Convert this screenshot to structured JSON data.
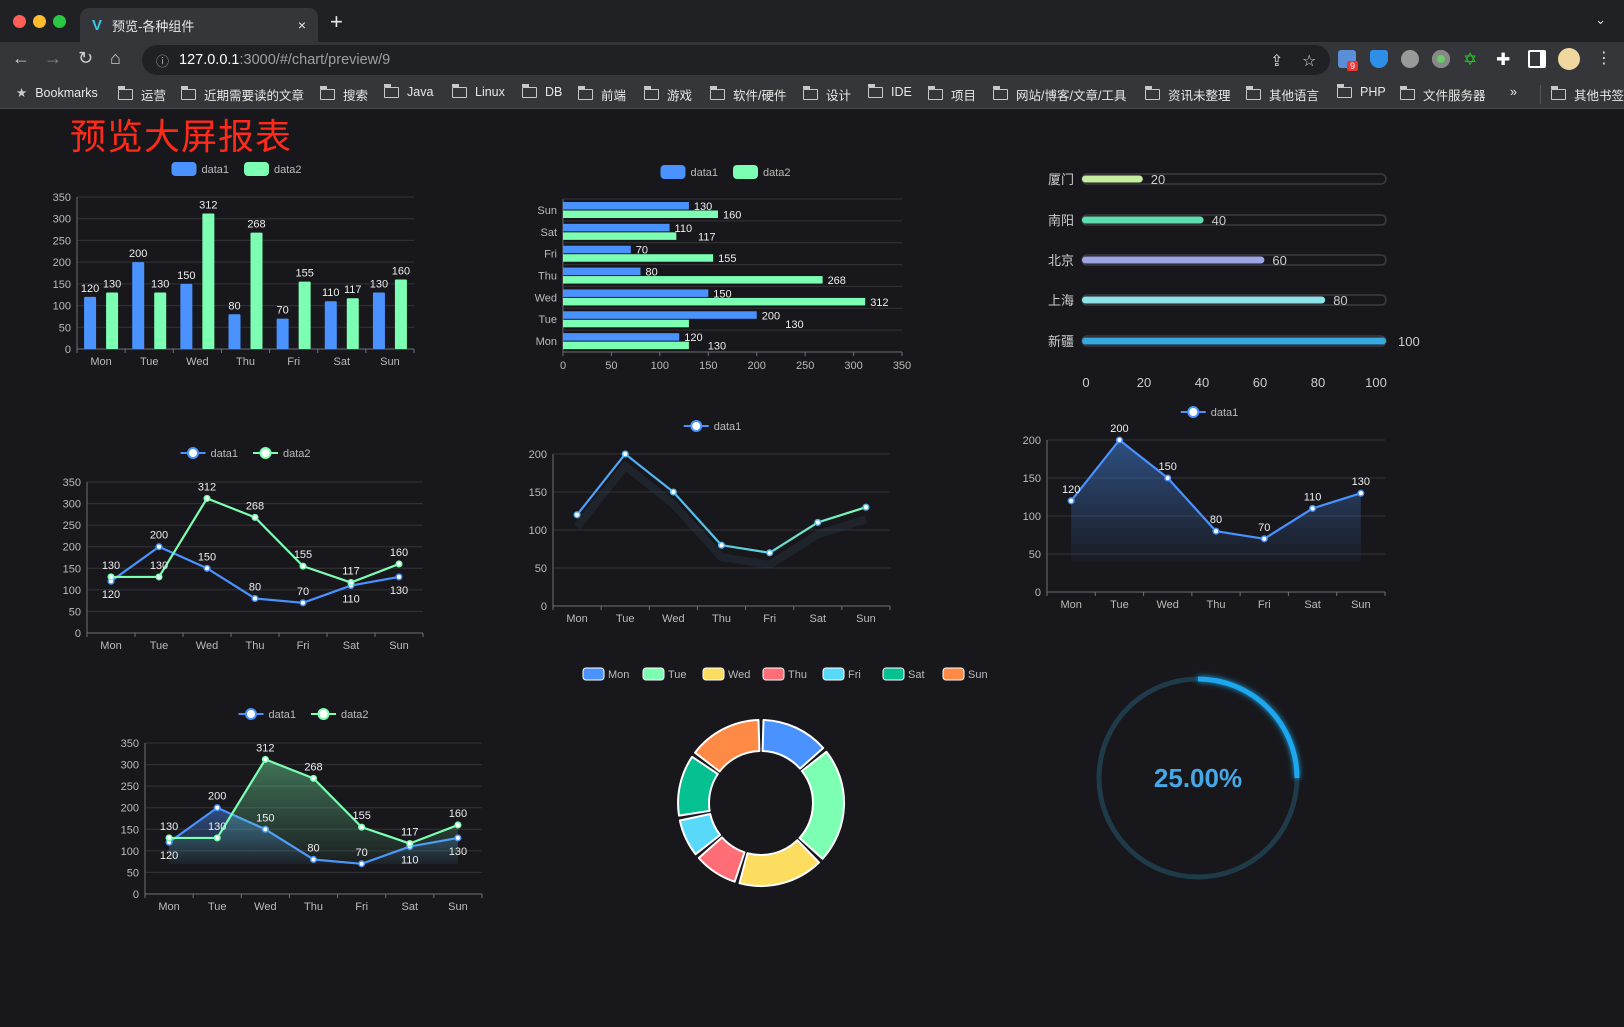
{
  "browser": {
    "tab_title": "预览-各种组件",
    "tab_close": "×",
    "new_tab": "+",
    "url_host": "127.0.0.1",
    "url_path": ":3000/#/chart/preview/9",
    "extension_badge": "9",
    "bookmarks": [
      "Bookmarks",
      "运营",
      "近期需要读的文章",
      "搜索",
      "Java",
      "Linux",
      "DB",
      "前端",
      "游戏",
      "软件/硬件",
      "设计",
      "IDE",
      "项目",
      "网站/博客/文章/工具",
      "资讯未整理",
      "其他语言",
      "PHP",
      "文件服务器"
    ],
    "bookmarks_overflow": "»",
    "other_bookmarks": "其他书签"
  },
  "page": {
    "title": "预览大屏报表",
    "title_color": "#ff2a1a"
  },
  "colors": {
    "data1": "#4992ff",
    "data2": "#7cffb2"
  },
  "chart_data": [
    {
      "type": "bar",
      "legend": [
        "data1",
        "data2"
      ],
      "legend_position": "top",
      "categories": [
        "Mon",
        "Tue",
        "Wed",
        "Thu",
        "Fri",
        "Sat",
        "Sun"
      ],
      "series": [
        {
          "name": "data1",
          "values": [
            120,
            200,
            150,
            80,
            70,
            110,
            130
          ]
        },
        {
          "name": "data2",
          "values": [
            130,
            130,
            312,
            268,
            155,
            117,
            160
          ]
        }
      ],
      "yticks": [
        0,
        50,
        100,
        150,
        200,
        250,
        300,
        350
      ],
      "ylim": [
        0,
        350
      ],
      "grid": true,
      "data_labels": true
    },
    {
      "type": "bar",
      "orientation": "horizontal",
      "legend": [
        "data1",
        "data2"
      ],
      "legend_position": "top",
      "categories": [
        "Mon",
        "Tue",
        "Wed",
        "Thu",
        "Fri",
        "Sat",
        "Sun"
      ],
      "series": [
        {
          "name": "data1",
          "values": [
            120,
            200,
            150,
            80,
            70,
            110,
            130
          ]
        },
        {
          "name": "data2",
          "values": [
            130,
            130,
            312,
            268,
            155,
            117,
            160
          ]
        }
      ],
      "xticks": [
        0,
        50,
        100,
        150,
        200,
        250,
        300,
        350
      ],
      "xlim": [
        0,
        350
      ],
      "grid": true,
      "data_labels": true
    },
    {
      "type": "bar",
      "orientation": "horizontal",
      "style": "progress",
      "categories": [
        "厦门",
        "南阳",
        "北京",
        "上海",
        "新疆"
      ],
      "values": [
        20,
        40,
        60,
        80,
        100
      ],
      "labels": [
        "20",
        "40",
        "60",
        "80",
        "100"
      ],
      "colors": [
        "#c6eea0",
        "#5fdfb0",
        "#9fa4e6",
        "#8ee2ea",
        "#36a9e1"
      ],
      "xticks": [
        0,
        20,
        40,
        60,
        80,
        100
      ],
      "xlim": [
        0,
        100
      ]
    },
    {
      "type": "line",
      "legend": [
        "data1",
        "data2"
      ],
      "legend_position": "top",
      "categories": [
        "Mon",
        "Tue",
        "Wed",
        "Thu",
        "Fri",
        "Sat",
        "Sun"
      ],
      "series": [
        {
          "name": "data1",
          "values": [
            120,
            200,
            150,
            80,
            70,
            110,
            130
          ]
        },
        {
          "name": "data2",
          "values": [
            130,
            130,
            312,
            268,
            155,
            117,
            160
          ]
        }
      ],
      "yticks": [
        0,
        50,
        100,
        150,
        200,
        250,
        300,
        350
      ],
      "ylim": [
        0,
        350
      ],
      "grid": true,
      "data_labels": true
    },
    {
      "type": "line",
      "legend": [
        "data1"
      ],
      "legend_position": "top",
      "categories": [
        "Mon",
        "Tue",
        "Wed",
        "Thu",
        "Fri",
        "Sat",
        "Sun"
      ],
      "series": [
        {
          "name": "data1",
          "values": [
            120,
            200,
            150,
            80,
            70,
            110,
            130
          ]
        }
      ],
      "yticks": [
        0,
        50,
        100,
        150,
        200
      ],
      "ylim": [
        0,
        200
      ],
      "grid": true,
      "data_labels": false
    },
    {
      "type": "area",
      "legend": [
        "data1"
      ],
      "legend_position": "top",
      "categories": [
        "Mon",
        "Tue",
        "Wed",
        "Thu",
        "Fri",
        "Sat",
        "Sun"
      ],
      "series": [
        {
          "name": "data1",
          "values": [
            120,
            200,
            150,
            80,
            70,
            110,
            130
          ]
        }
      ],
      "yticks": [
        0,
        50,
        100,
        150,
        200
      ],
      "ylim": [
        0,
        200
      ],
      "grid": true,
      "data_labels": true
    },
    {
      "type": "area",
      "legend": [
        "data1",
        "data2"
      ],
      "legend_position": "top",
      "categories": [
        "Mon",
        "Tue",
        "Wed",
        "Thu",
        "Fri",
        "Sat",
        "Sun"
      ],
      "series": [
        {
          "name": "data1",
          "values": [
            120,
            200,
            150,
            80,
            70,
            110,
            130
          ]
        },
        {
          "name": "data2",
          "values": [
            130,
            130,
            312,
            268,
            155,
            117,
            160
          ]
        }
      ],
      "yticks": [
        0,
        50,
        100,
        150,
        200,
        250,
        300,
        350
      ],
      "ylim": [
        0,
        350
      ],
      "grid": true,
      "data_labels": true
    },
    {
      "type": "pie",
      "style": "donut",
      "legend_position": "top",
      "categories": [
        "Mon",
        "Tue",
        "Wed",
        "Thu",
        "Fri",
        "Sat",
        "Sun"
      ],
      "values": [
        120,
        200,
        150,
        80,
        70,
        110,
        130
      ],
      "colors": [
        "#4992ff",
        "#7cffb2",
        "#fddd60",
        "#ff6e76",
        "#58d9f9",
        "#05c091",
        "#ff8a45"
      ]
    },
    {
      "type": "gauge",
      "value": 25,
      "label": "25.00%",
      "color": "#1aa7ee",
      "track_color": "#1f3a48"
    }
  ]
}
